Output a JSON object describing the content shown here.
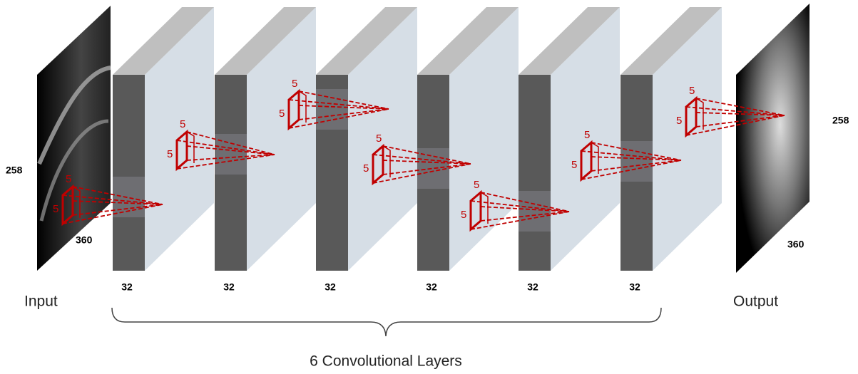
{
  "input": {
    "label": "Input",
    "height": 258,
    "width": 360,
    "kernel": [
      5,
      5
    ]
  },
  "layers": [
    {
      "depth": 32,
      "kernel": [
        5,
        5
      ]
    },
    {
      "depth": 32,
      "kernel": [
        5,
        5
      ]
    },
    {
      "depth": 32,
      "kernel": [
        5,
        5
      ]
    },
    {
      "depth": 32,
      "kernel": [
        5,
        5
      ]
    },
    {
      "depth": 32,
      "kernel": [
        5,
        5
      ]
    },
    {
      "depth": 32,
      "kernel": [
        5,
        5
      ]
    }
  ],
  "output": {
    "label": "Output",
    "height": 258,
    "width": 360
  },
  "brace_label": "6 Convolutional Layers"
}
